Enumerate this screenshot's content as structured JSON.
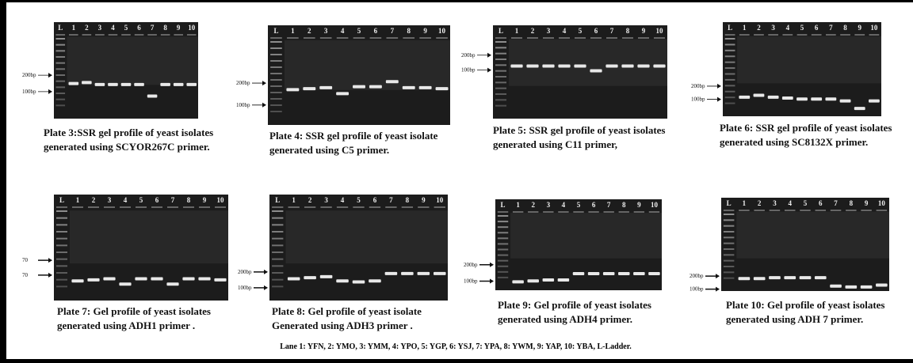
{
  "plates": [
    {
      "caption": [
        "Plate 3:SSR gel profile of yeast isolates",
        "generated using SCYOR267C primer."
      ],
      "lanes": [
        "L",
        "1",
        "2",
        "3",
        "4",
        "5",
        "6",
        "7",
        "8",
        "9",
        "10"
      ],
      "markers": [
        "200bp",
        "100bp"
      ]
    },
    {
      "caption": [
        "Plate 4: SSR gel profile of yeast isolate",
        "generated using C5 primer."
      ],
      "lanes": [
        "L",
        "1",
        "2",
        "3",
        "4",
        "5",
        "6",
        "7",
        "8",
        "9",
        "10"
      ],
      "markers": [
        "200bp",
        "100bp"
      ]
    },
    {
      "caption": [
        "Plate 5: SSR gel profile of yeast isolates",
        "generated using C11 primer,"
      ],
      "lanes": [
        "L",
        "1",
        "2",
        "3",
        "4",
        "5",
        "6",
        "7",
        "8",
        "9",
        "10"
      ],
      "markers": [
        "200bp",
        "100bp"
      ]
    },
    {
      "caption": [
        "Plate 6: SSR gel profile of yeast isolates",
        "generated using SC8132X primer."
      ],
      "lanes": [
        "L",
        "1",
        "2",
        "3",
        "4",
        "5",
        "6",
        "7",
        "8",
        "9",
        "10"
      ],
      "markers": [
        "200bp",
        "100bp"
      ]
    },
    {
      "caption": [
        "Plate 7: Gel profile of yeast isolates",
        "generated using ADH1 primer ."
      ],
      "lanes": [
        "L",
        "1",
        "2",
        "3",
        "4",
        "5",
        "6",
        "7",
        "8",
        "9",
        "10"
      ],
      "markers": [
        "70",
        "70"
      ]
    },
    {
      "caption": [
        "Plate 8: Gel profile of yeast isolate",
        "Generated  using ADH3 primer ."
      ],
      "lanes": [
        "L",
        "1",
        "2",
        "3",
        "4",
        "5",
        "6",
        "7",
        "8",
        "9",
        "10"
      ],
      "markers": [
        "200bp",
        "100bp"
      ]
    },
    {
      "caption": [
        "Plate 9: Gel profile of yeast isolates",
        "generated using ADH4 primer."
      ],
      "lanes": [
        "L",
        "1",
        "2",
        "3",
        "4",
        "5",
        "6",
        "7",
        "8",
        "9",
        "10"
      ],
      "markers": [
        "200bp",
        "100bp"
      ]
    },
    {
      "caption": [
        "Plate 10: Gel profile of yeast isolates",
        "generated using ADH 7 primer."
      ],
      "lanes": [
        "L",
        "1",
        "2",
        "3",
        "4",
        "5",
        "6",
        "7",
        "8",
        "9",
        "10"
      ],
      "markers": [
        "200bp",
        "100bp"
      ]
    }
  ],
  "footer": "Lane 1: YFN,  2: YMO,  3: YMM,  4: YPO,  5: YGP,  6: YSJ,  7: YPA,  8: YWM,  9: YAP,  10: YBA, L-Ladder."
}
